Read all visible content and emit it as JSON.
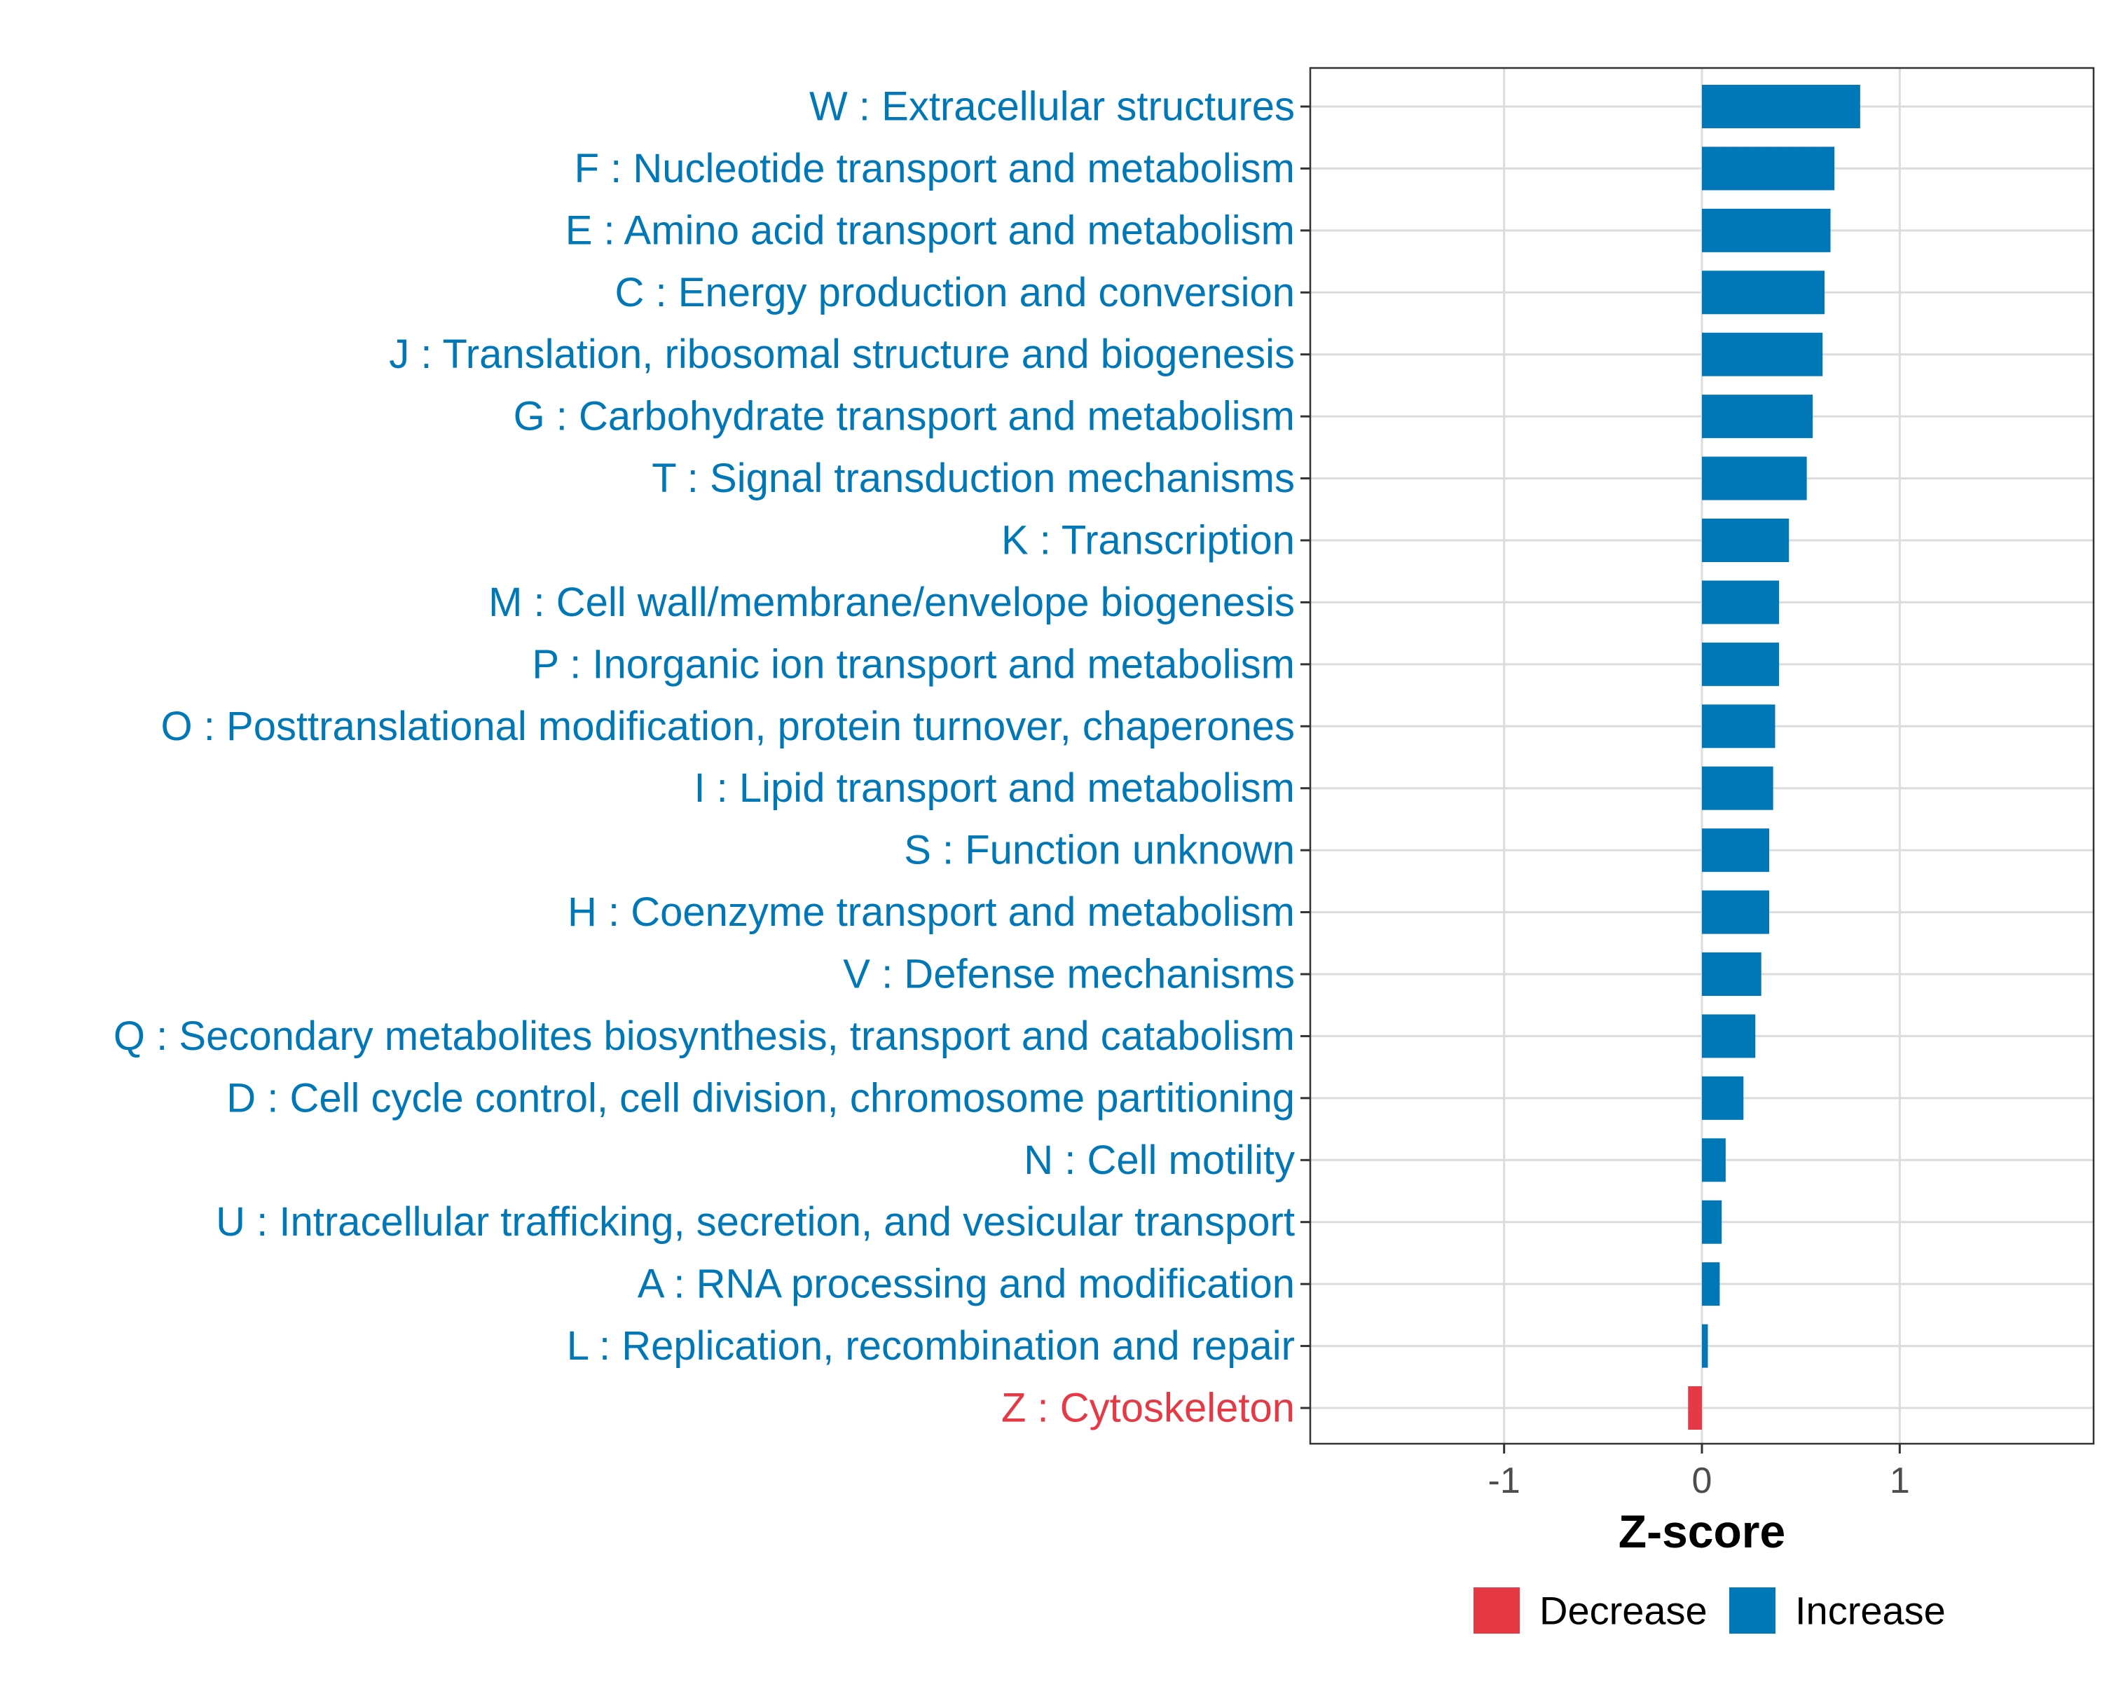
{
  "chart_data": {
    "type": "bar",
    "orientation": "horizontal",
    "xlabel": "Z-score",
    "ylabel": "",
    "xlim": [
      -1.98,
      1.98
    ],
    "xticks": [
      -1,
      0,
      1
    ],
    "xtick_labels": [
      "-1",
      "0",
      "1"
    ],
    "grid": true,
    "colors": {
      "Decrease": "#e63946",
      "Increase": "#0077b6"
    },
    "legend": {
      "position": "bottom",
      "entries": [
        {
          "label": "Decrease",
          "color": "#e63946"
        },
        {
          "label": "Increase",
          "color": "#0077b6"
        }
      ]
    },
    "categories": [
      "W : Extracellular structures",
      "F : Nucleotide transport and metabolism",
      "E : Amino acid transport and metabolism",
      "C : Energy production and conversion",
      "J : Translation, ribosomal structure and biogenesis",
      "G : Carbohydrate transport and metabolism",
      "T : Signal transduction mechanisms",
      "K : Transcription",
      "M : Cell wall/membrane/envelope biogenesis",
      "P : Inorganic ion transport and metabolism",
      "O : Posttranslational modification, protein turnover, chaperones",
      "I : Lipid transport and metabolism",
      "S : Function unknown",
      "H : Coenzyme transport and metabolism",
      "V : Defense mechanisms",
      "Q : Secondary metabolites biosynthesis, transport and catabolism",
      "D : Cell cycle control, cell division, chromosome partitioning",
      "N : Cell motility",
      "U : Intracellular trafficking, secretion, and vesicular transport",
      "A : RNA processing and modification",
      "L : Replication, recombination and repair",
      "Z : Cytoskeleton"
    ],
    "values": [
      0.8,
      0.67,
      0.65,
      0.62,
      0.61,
      0.56,
      0.53,
      0.44,
      0.39,
      0.39,
      0.37,
      0.36,
      0.34,
      0.34,
      0.3,
      0.27,
      0.21,
      0.12,
      0.1,
      0.09,
      0.03,
      -0.07
    ],
    "groups": [
      "Increase",
      "Increase",
      "Increase",
      "Increase",
      "Increase",
      "Increase",
      "Increase",
      "Increase",
      "Increase",
      "Increase",
      "Increase",
      "Increase",
      "Increase",
      "Increase",
      "Increase",
      "Increase",
      "Increase",
      "Increase",
      "Increase",
      "Increase",
      "Increase",
      "Decrease"
    ]
  }
}
